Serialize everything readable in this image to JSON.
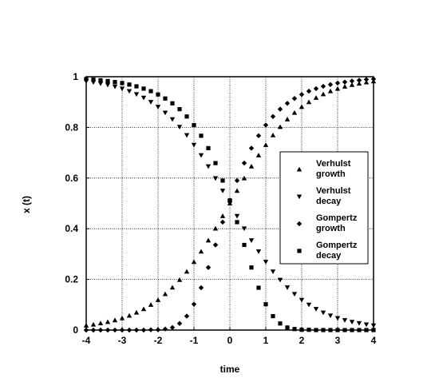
{
  "chart_data": {
    "type": "scatter",
    "title": "",
    "xlabel": "time",
    "ylabel": "x (t)",
    "xlim": [
      -4,
      4
    ],
    "ylim": [
      0,
      1
    ],
    "xticks": [
      "-4",
      "-3",
      "-2",
      "-1",
      "0",
      "1",
      "2",
      "3",
      "4"
    ],
    "yticks": [
      "0",
      "0.2",
      "0.4",
      "0.6",
      "0.8",
      "1"
    ],
    "grid": true,
    "legend": "center-right",
    "x": [
      -4,
      -3.8,
      -3.6,
      -3.4,
      -3.2,
      -3,
      -2.8,
      -2.6,
      -2.4,
      -2.2,
      -2,
      -1.8,
      -1.6,
      -1.4,
      -1.2,
      -1,
      -0.8,
      -0.6,
      -0.4,
      -0.2,
      0,
      0.2,
      0.4,
      0.6,
      0.8,
      1,
      1.2,
      1.4,
      1.6,
      1.8,
      2,
      2.2,
      2.4,
      2.6,
      2.8,
      3,
      3.2,
      3.4,
      3.6,
      3.8,
      4
    ],
    "series": [
      {
        "name": "Verhulst growth",
        "marker": "triangle-up",
        "values": [
          0.018,
          0.022,
          0.027,
          0.032,
          0.039,
          0.047,
          0.057,
          0.069,
          0.083,
          0.1,
          0.119,
          0.142,
          0.168,
          0.198,
          0.231,
          0.269,
          0.31,
          0.354,
          0.401,
          0.45,
          0.5,
          0.55,
          0.599,
          0.646,
          0.69,
          0.731,
          0.769,
          0.802,
          0.832,
          0.858,
          0.881,
          0.9,
          0.917,
          0.931,
          0.943,
          0.953,
          0.961,
          0.968,
          0.973,
          0.978,
          0.982
        ]
      },
      {
        "name": "Verhulst decay",
        "marker": "triangle-down",
        "values": [
          0.982,
          0.978,
          0.973,
          0.968,
          0.961,
          0.953,
          0.943,
          0.931,
          0.917,
          0.9,
          0.881,
          0.858,
          0.832,
          0.802,
          0.769,
          0.731,
          0.69,
          0.646,
          0.599,
          0.55,
          0.5,
          0.45,
          0.401,
          0.354,
          0.31,
          0.269,
          0.231,
          0.198,
          0.168,
          0.142,
          0.119,
          0.1,
          0.083,
          0.069,
          0.057,
          0.047,
          0.039,
          0.032,
          0.027,
          0.022,
          0.018
        ]
      },
      {
        "name": "Gompertz growth",
        "marker": "diamond",
        "values": [
          0.0,
          0.0,
          0.0,
          0.0,
          0.0,
          0.0,
          0.0,
          0.0,
          0.0,
          0.001,
          0.001,
          0.004,
          0.01,
          0.026,
          0.055,
          0.102,
          0.167,
          0.247,
          0.336,
          0.426,
          0.512,
          0.59,
          0.659,
          0.718,
          0.767,
          0.809,
          0.843,
          0.872,
          0.895,
          0.914,
          0.93,
          0.943,
          0.953,
          0.962,
          0.969,
          0.975,
          0.979,
          0.983,
          0.986,
          0.989,
          0.991
        ]
      },
      {
        "name": "Gompertz decay",
        "marker": "square",
        "values": [
          0.991,
          0.989,
          0.986,
          0.983,
          0.979,
          0.975,
          0.969,
          0.962,
          0.953,
          0.943,
          0.93,
          0.914,
          0.895,
          0.872,
          0.843,
          0.809,
          0.767,
          0.718,
          0.659,
          0.59,
          0.512,
          0.426,
          0.336,
          0.247,
          0.167,
          0.102,
          0.055,
          0.026,
          0.01,
          0.004,
          0.001,
          0.001,
          0.0,
          0.0,
          0.0,
          0.0,
          0.0,
          0.0,
          0.0,
          0.0,
          0.0
        ]
      }
    ],
    "legend_labels": [
      [
        "Verhulst",
        "growth"
      ],
      [
        "Verhulst",
        "decay"
      ],
      [
        "Gompertz",
        "growth"
      ],
      [
        "Gompertz",
        "decay"
      ]
    ]
  }
}
